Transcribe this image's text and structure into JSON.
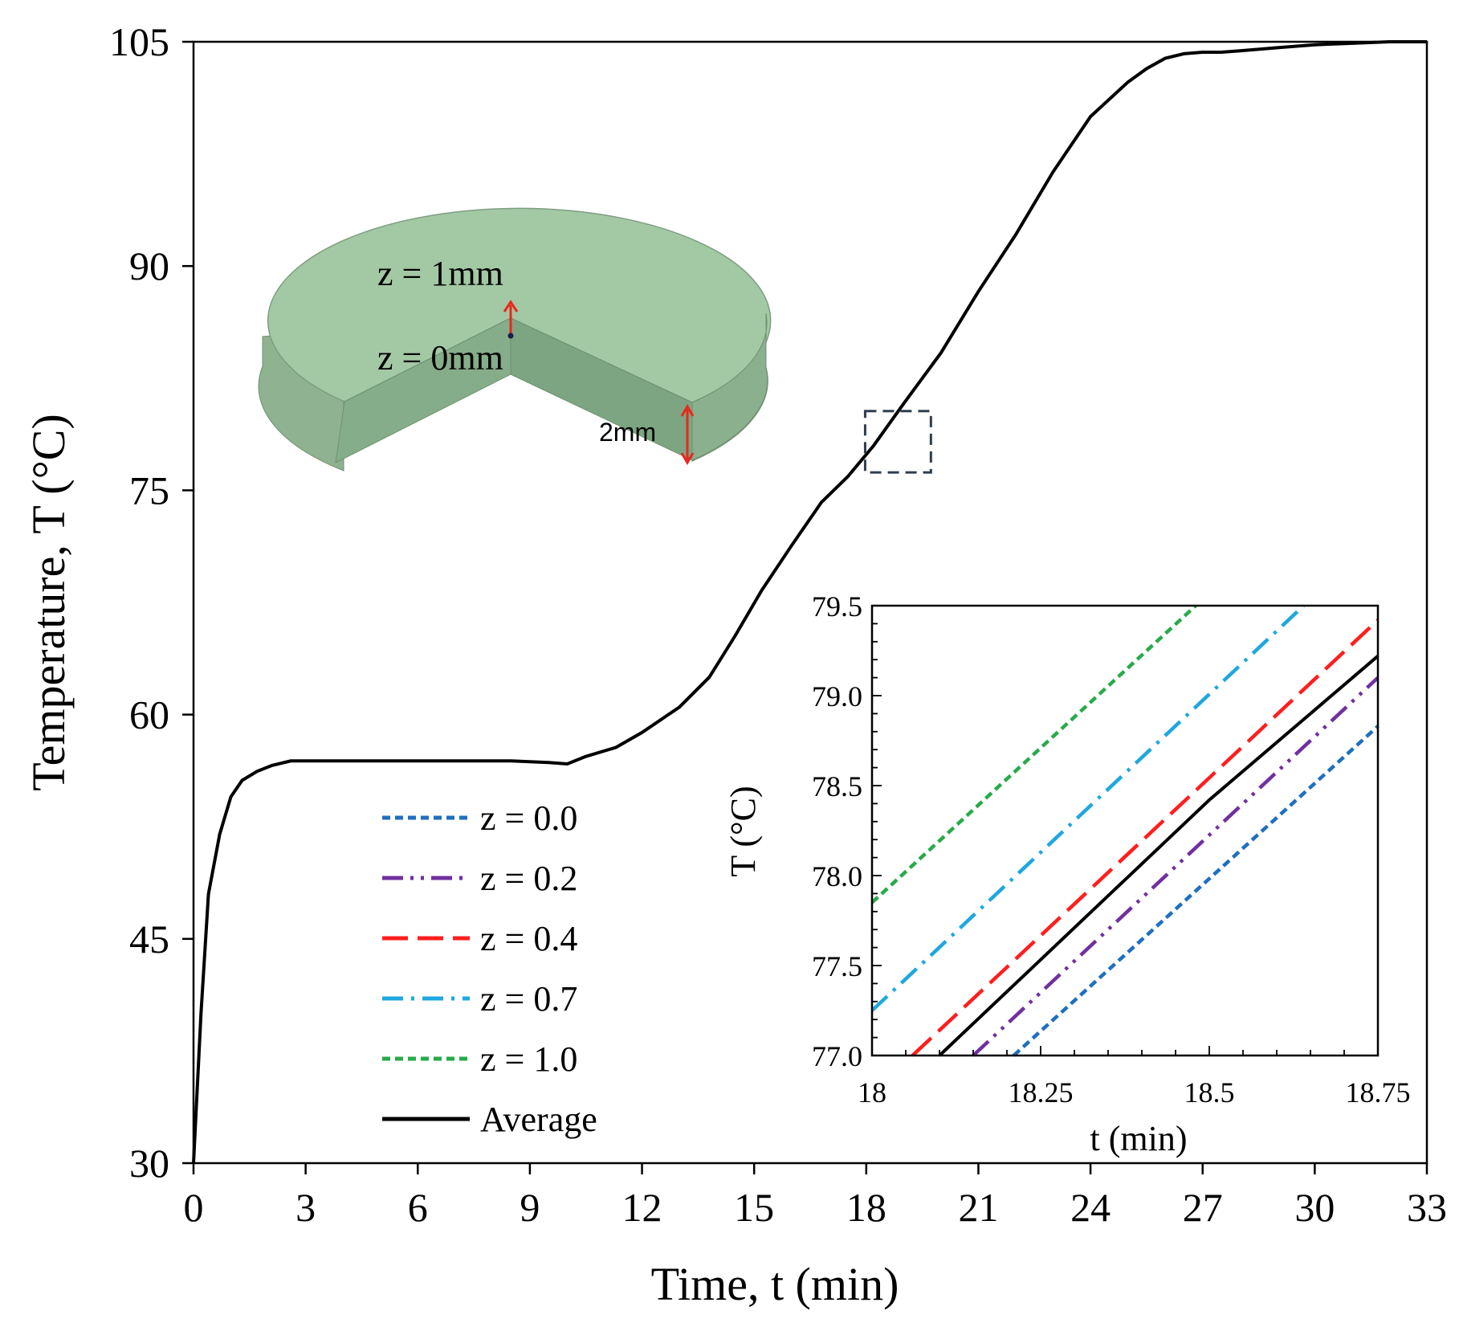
{
  "chart_data": [
    {
      "id": "main",
      "type": "line",
      "xlabel": "Time, t (min)",
      "ylabel": "Temperature, T (°C)",
      "xlim": [
        0,
        33
      ],
      "ylim": [
        30,
        105
      ],
      "xticks": [
        0,
        3,
        6,
        9,
        12,
        15,
        18,
        21,
        24,
        27,
        30,
        33
      ],
      "yticks": [
        30,
        45,
        60,
        75,
        90,
        105
      ],
      "grid": false,
      "series": [
        {
          "name": "Average",
          "color": "#000000",
          "dash": "solid",
          "x": [
            0,
            0.2,
            0.4,
            0.7,
            1.0,
            1.3,
            1.7,
            2.1,
            2.6,
            3.5,
            5,
            7,
            8.5,
            9.5,
            10,
            10.5,
            11.3,
            12,
            13,
            13.8,
            14.5,
            15.2,
            16,
            16.8,
            17.5,
            18.2,
            19,
            20,
            21,
            22,
            23,
            24,
            25,
            25.5,
            26,
            26.5,
            27,
            27.5,
            28,
            29,
            30,
            31,
            32,
            33
          ],
          "y": [
            30,
            40,
            48,
            52,
            54.5,
            55.6,
            56.2,
            56.6,
            56.9,
            56.9,
            56.9,
            56.9,
            56.9,
            56.8,
            56.7,
            57.2,
            57.8,
            58.8,
            60.5,
            62.5,
            65.3,
            68.3,
            71.3,
            74.2,
            75.9,
            78.0,
            80.8,
            84.2,
            88.3,
            92.1,
            96.3,
            100.0,
            102.3,
            103.2,
            103.9,
            104.2,
            104.3,
            104.3,
            104.4,
            104.6,
            104.8,
            104.9,
            105.0,
            105.0
          ]
        }
      ]
    },
    {
      "id": "inset",
      "type": "line",
      "xlabel": "t (min)",
      "ylabel": "T (°C)",
      "xlim": [
        18,
        18.75
      ],
      "ylim": [
        77.0,
        79.5
      ],
      "xticks": [
        18,
        18.25,
        18.5,
        18.75
      ],
      "xtick_labels": [
        "18",
        "18.25",
        "18.5",
        "18.75"
      ],
      "yticks": [
        77.0,
        77.5,
        78.0,
        78.5,
        79.0,
        79.5
      ],
      "ytick_labels": [
        "77.0",
        "77.5",
        "78.0",
        "78.5",
        "79.0",
        "79.5"
      ],
      "grid": false,
      "series": [
        {
          "name": "z = 0.0",
          "color": "#1f6fbf",
          "dash": "short-dash",
          "x": [
            18.21,
            18.75
          ],
          "y": [
            77.0,
            78.83
          ]
        },
        {
          "name": "z = 0.2",
          "color": "#7030a0",
          "dash": "dash-dot-dot",
          "x": [
            18.15,
            18.75
          ],
          "y": [
            77.0,
            79.1
          ]
        },
        {
          "name": "z = 0.4",
          "color": "#ff1e1e",
          "dash": "long-dash",
          "x": [
            18.06,
            18.75
          ],
          "y": [
            77.0,
            79.42
          ]
        },
        {
          "name": "z = 0.7",
          "color": "#1fa7e0",
          "dash": "dash-dot",
          "x": [
            18.0,
            18.64
          ],
          "y": [
            77.25,
            79.5
          ]
        },
        {
          "name": "z = 1.0",
          "color": "#2aaa4a",
          "dash": "short-dash",
          "x": [
            18.0,
            18.48
          ],
          "y": [
            77.85,
            79.5
          ]
        },
        {
          "name": "Average",
          "color": "#000000",
          "dash": "solid",
          "x": [
            18.1,
            18.5,
            18.75
          ],
          "y": [
            77.0,
            78.42,
            79.22
          ]
        }
      ]
    }
  ],
  "legend": {
    "placement": "bottom-center",
    "entries": [
      "z = 0.0",
      "z = 0.2",
      "z = 0.4",
      "z = 0.7",
      "z = 1.0",
      "Average"
    ]
  },
  "zoom_box": {
    "x_range": [
      18,
      18.75
    ],
    "y_range": [
      77,
      79.5
    ],
    "color": "#2f3e4e"
  },
  "disk_diagram": {
    "fill_top": "#a3c9a4",
    "fill_side": "#8fb391",
    "fill_cut": "#7ea582",
    "label_top": "z = 1mm",
    "label_bottom": "z = 0mm",
    "label_thickness": "2mm",
    "arrow_color": "#e8281e"
  }
}
